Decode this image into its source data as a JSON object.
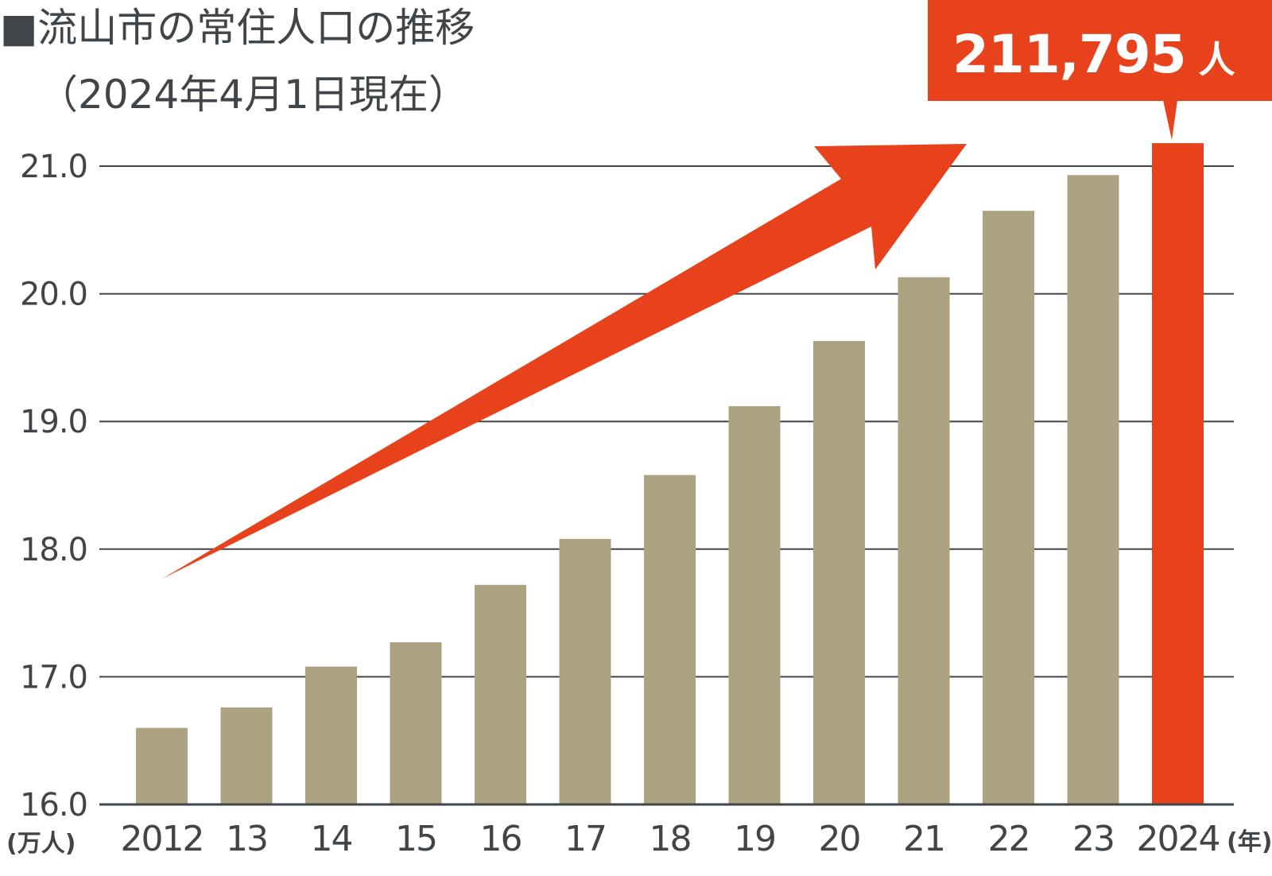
{
  "title": {
    "marker": "■",
    "line1": "流山市の常住人口の推移",
    "line2": "（2024年4月1日現在）"
  },
  "y_unit": "(万人)",
  "x_unit": "(年)",
  "callout": {
    "value": "211,795",
    "unit": "人"
  },
  "colors": {
    "bar": "#ada282",
    "highlight": "#e8421c",
    "grid": "#3f4549",
    "text": "#3f4549"
  },
  "chart_data": {
    "type": "bar",
    "categories": [
      "2012",
      "13",
      "14",
      "15",
      "16",
      "17",
      "18",
      "19",
      "20",
      "21",
      "22",
      "23",
      "2024"
    ],
    "values": [
      16.6,
      16.76,
      17.08,
      17.27,
      17.72,
      18.08,
      18.58,
      19.12,
      19.63,
      20.13,
      20.65,
      20.93,
      21.18
    ],
    "highlight_index": 12,
    "ylim": [
      16.0,
      21.0
    ],
    "yticks": [
      "16.0",
      "17.0",
      "18.0",
      "19.0",
      "20.0",
      "21.0"
    ],
    "grid": true,
    "annotation": "upward trend arrow"
  }
}
